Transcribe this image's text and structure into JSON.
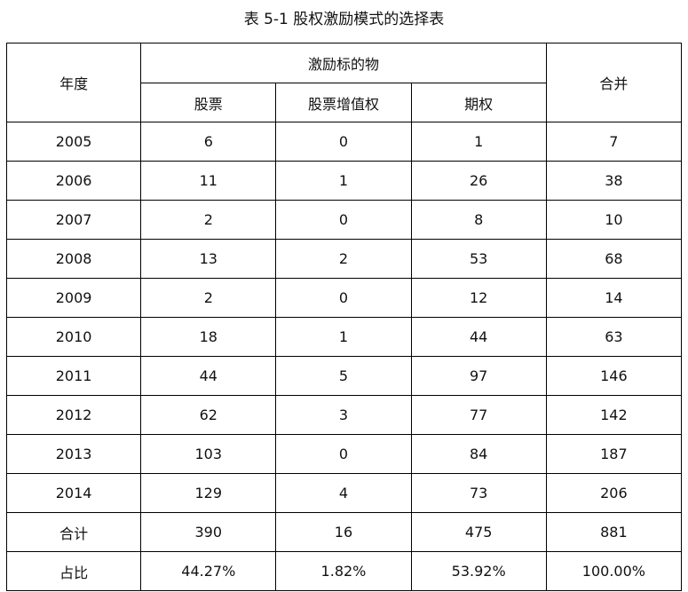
{
  "title": "表 5-1 股权激励模式的选择表",
  "header": {
    "year": "年度",
    "group": "激励标的物",
    "stock": "股票",
    "sar": "股票增值权",
    "option": "期权",
    "total": "合并"
  },
  "rows": [
    {
      "year": "2005",
      "stock": "6",
      "sar": "0",
      "option": "1",
      "total": "7"
    },
    {
      "year": "2006",
      "stock": "11",
      "sar": "1",
      "option": "26",
      "total": "38"
    },
    {
      "year": "2007",
      "stock": "2",
      "sar": "0",
      "option": "8",
      "total": "10"
    },
    {
      "year": "2008",
      "stock": "13",
      "sar": "2",
      "option": "53",
      "total": "68"
    },
    {
      "year": "2009",
      "stock": "2",
      "sar": "0",
      "option": "12",
      "total": "14"
    },
    {
      "year": "2010",
      "stock": "18",
      "sar": "1",
      "option": "44",
      "total": "63"
    },
    {
      "year": "2011",
      "stock": "44",
      "sar": "5",
      "option": "97",
      "total": "146"
    },
    {
      "year": "2012",
      "stock": "62",
      "sar": "3",
      "option": "77",
      "total": "142"
    },
    {
      "year": "2013",
      "stock": "103",
      "sar": "0",
      "option": "84",
      "total": "187"
    },
    {
      "year": "2014",
      "stock": "129",
      "sar": "4",
      "option": "73",
      "total": "206"
    },
    {
      "year": "合计",
      "stock": "390",
      "sar": "16",
      "option": "475",
      "total": "881"
    },
    {
      "year": "占比",
      "stock": "44.27%",
      "sar": "1.82%",
      "option": "53.92%",
      "total": "100.00%"
    }
  ]
}
